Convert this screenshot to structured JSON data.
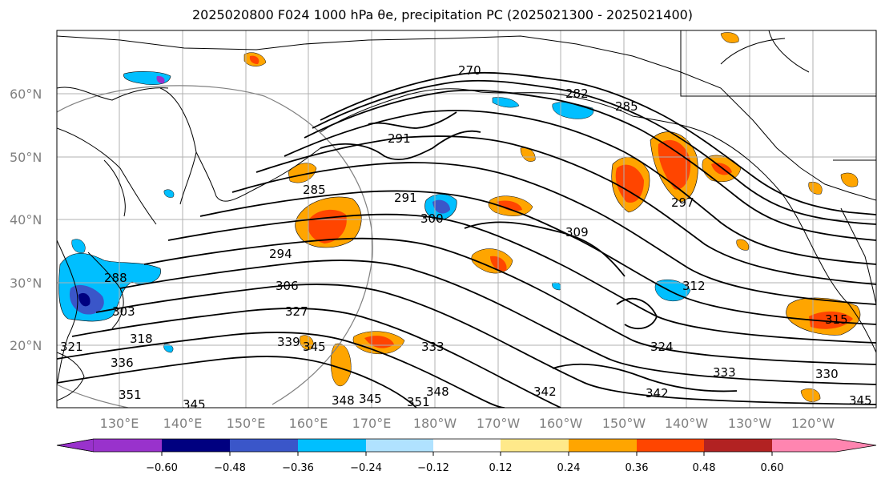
{
  "title": "2025020800 F024 1000 hPa θe, precipitation PC (2025021300 - 2025021400)",
  "map": {
    "lat_labels": [
      "60°N",
      "50°N",
      "40°N",
      "30°N",
      "20°N"
    ],
    "lon_labels": [
      "130°E",
      "140°E",
      "150°E",
      "160°E",
      "170°E",
      "180°W",
      "170°W",
      "160°W",
      "150°W",
      "140°W",
      "130°W",
      "120°W"
    ],
    "contour_labels": [
      "270",
      "282",
      "285",
      "291",
      "285",
      "291",
      "300",
      "309",
      "294",
      "306",
      "297",
      "312",
      "288",
      "303",
      "327",
      "318",
      "321",
      "339",
      "345",
      "333",
      "324",
      "336",
      "333",
      "330",
      "351",
      "345",
      "348",
      "345",
      "351",
      "348",
      "342",
      "342",
      "315",
      "345"
    ]
  },
  "colorbar": {
    "colors": [
      "#9932cc",
      "#000080",
      "#3a56c9",
      "#00bfff",
      "#b0e2ff",
      "#ffffff",
      "#ffe98a",
      "#ffa500",
      "#ff4500",
      "#b22222",
      "#ff85b0"
    ],
    "labels": [
      "−0.60",
      "−0.48",
      "−0.36",
      "−0.24",
      "−0.12",
      "0.12",
      "0.24",
      "0.36",
      "0.48",
      "0.60"
    ]
  }
}
